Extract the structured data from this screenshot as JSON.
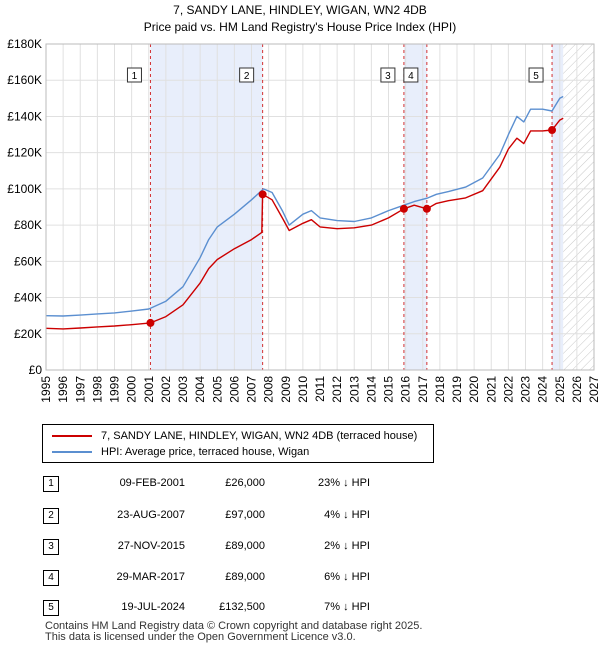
{
  "chart_data": {
    "type": "line",
    "title": "7, SANDY LANE, HINDLEY, WIGAN, WN2 4DB",
    "subtitle": "Price paid vs. HM Land Registry's House Price Index (HPI)",
    "xlim": [
      1995,
      2027
    ],
    "ylim": [
      0,
      180000
    ],
    "x_ticks": [
      "1995",
      "1996",
      "1997",
      "1998",
      "1999",
      "2000",
      "2001",
      "2002",
      "2003",
      "2004",
      "2005",
      "2006",
      "2007",
      "2008",
      "2009",
      "2010",
      "2011",
      "2012",
      "2013",
      "2014",
      "2015",
      "2016",
      "2017",
      "2018",
      "2019",
      "2020",
      "2021",
      "2022",
      "2023",
      "2024",
      "2025",
      "2026",
      "2027"
    ],
    "y_ticks": [
      {
        "value": 0,
        "label": "£0"
      },
      {
        "value": 20000,
        "label": "£20K"
      },
      {
        "value": 40000,
        "label": "£40K"
      },
      {
        "value": 60000,
        "label": "£60K"
      },
      {
        "value": 80000,
        "label": "£80K"
      },
      {
        "value": 100000,
        "label": "£100K"
      },
      {
        "value": 120000,
        "label": "£120K"
      },
      {
        "value": 140000,
        "label": "£140K"
      },
      {
        "value": 160000,
        "label": "£160K"
      },
      {
        "value": 180000,
        "label": "£180K"
      }
    ],
    "shaded_ranges": [
      [
        2001.1,
        2007.65
      ],
      [
        2015.9,
        2017.24
      ],
      [
        2024.55,
        2025.2
      ]
    ],
    "future_hatch_from": 2025.2,
    "series": [
      {
        "name": "7, SANDY LANE, HINDLEY, WIGAN, WN2 4DB (terraced house)",
        "color": "#cc0000",
        "points": [
          [
            1995.0,
            23000
          ],
          [
            1996.0,
            22700
          ],
          [
            1997.0,
            23200
          ],
          [
            1998.0,
            23800
          ],
          [
            1999.0,
            24300
          ],
          [
            2000.0,
            25000
          ],
          [
            2001.1,
            26000
          ],
          [
            2002.0,
            29500
          ],
          [
            2003.0,
            36000
          ],
          [
            2004.0,
            48000
          ],
          [
            2004.5,
            56000
          ],
          [
            2005.0,
            61000
          ],
          [
            2006.0,
            67000
          ],
          [
            2007.0,
            72000
          ],
          [
            2007.6,
            76000
          ],
          [
            2007.65,
            97000
          ],
          [
            2008.2,
            94000
          ],
          [
            2008.8,
            84000
          ],
          [
            2009.2,
            77000
          ],
          [
            2010.0,
            81000
          ],
          [
            2010.5,
            83000
          ],
          [
            2011.0,
            79000
          ],
          [
            2012.0,
            78000
          ],
          [
            2013.0,
            78500
          ],
          [
            2014.0,
            80000
          ],
          [
            2015.0,
            84000
          ],
          [
            2015.9,
            89000
          ],
          [
            2016.5,
            91000
          ],
          [
            2017.24,
            89000
          ],
          [
            2017.8,
            92000
          ],
          [
            2018.5,
            93500
          ],
          [
            2019.5,
            95000
          ],
          [
            2020.5,
            99000
          ],
          [
            2021.5,
            112000
          ],
          [
            2022.0,
            122000
          ],
          [
            2022.5,
            128000
          ],
          [
            2022.9,
            125000
          ],
          [
            2023.3,
            132000
          ],
          [
            2024.0,
            132000
          ],
          [
            2024.55,
            132500
          ],
          [
            2025.0,
            138000
          ],
          [
            2025.2,
            139000
          ]
        ]
      },
      {
        "name": "HPI: Average price, terraced house, Wigan",
        "color": "#5b8fd0",
        "points": [
          [
            1995.0,
            30000
          ],
          [
            1996.0,
            29800
          ],
          [
            1997.0,
            30300
          ],
          [
            1998.0,
            31000
          ],
          [
            1999.0,
            31500
          ],
          [
            2000.0,
            32500
          ],
          [
            2001.0,
            33700
          ],
          [
            2002.0,
            38000
          ],
          [
            2003.0,
            46000
          ],
          [
            2004.0,
            62000
          ],
          [
            2004.5,
            72000
          ],
          [
            2005.0,
            79000
          ],
          [
            2006.0,
            86000
          ],
          [
            2007.0,
            94000
          ],
          [
            2007.7,
            100000
          ],
          [
            2008.2,
            98000
          ],
          [
            2008.8,
            88000
          ],
          [
            2009.2,
            80000
          ],
          [
            2010.0,
            86000
          ],
          [
            2010.5,
            88000
          ],
          [
            2011.0,
            84000
          ],
          [
            2012.0,
            82500
          ],
          [
            2013.0,
            82000
          ],
          [
            2014.0,
            84000
          ],
          [
            2015.0,
            88000
          ],
          [
            2015.9,
            91000
          ],
          [
            2016.5,
            93000
          ],
          [
            2017.3,
            95000
          ],
          [
            2017.8,
            97000
          ],
          [
            2018.5,
            98500
          ],
          [
            2019.5,
            101000
          ],
          [
            2020.5,
            106000
          ],
          [
            2021.5,
            119000
          ],
          [
            2022.0,
            130000
          ],
          [
            2022.5,
            140000
          ],
          [
            2022.9,
            137000
          ],
          [
            2023.3,
            144000
          ],
          [
            2024.0,
            144000
          ],
          [
            2024.55,
            143000
          ],
          [
            2025.0,
            150000
          ],
          [
            2025.2,
            151000
          ]
        ]
      }
    ],
    "sales": [
      {
        "id": "1",
        "x": 2001.1,
        "value": 26000
      },
      {
        "id": "2",
        "x": 2007.65,
        "value": 97000
      },
      {
        "id": "3",
        "x": 2015.9,
        "value": 89000
      },
      {
        "id": "4",
        "x": 2017.24,
        "value": 89000
      },
      {
        "id": "5",
        "x": 2024.55,
        "value": 132500
      }
    ]
  },
  "legend": {
    "red_label": "7, SANDY LANE, HINDLEY, WIGAN, WN2 4DB (terraced house)",
    "blue_label": "HPI: Average price, terraced house, Wigan",
    "red_color": "#cc0000",
    "blue_color": "#5b8fd0"
  },
  "sales_table": [
    {
      "num": "1",
      "date": "09-FEB-2001",
      "price": "£26,000",
      "hpi": "23% ↓ HPI"
    },
    {
      "num": "2",
      "date": "23-AUG-2007",
      "price": "£97,000",
      "hpi": "4% ↓ HPI"
    },
    {
      "num": "3",
      "date": "27-NOV-2015",
      "price": "£89,000",
      "hpi": "2% ↓ HPI"
    },
    {
      "num": "4",
      "date": "29-MAR-2017",
      "price": "£89,000",
      "hpi": "6% ↓ HPI"
    },
    {
      "num": "5",
      "date": "19-JUL-2024",
      "price": "£132,500",
      "hpi": "7% ↓ HPI"
    }
  ],
  "footer": {
    "line1": "Contains HM Land Registry data © Crown copyright and database right 2025.",
    "line2": "This data is licensed under the Open Government Licence v3.0."
  }
}
